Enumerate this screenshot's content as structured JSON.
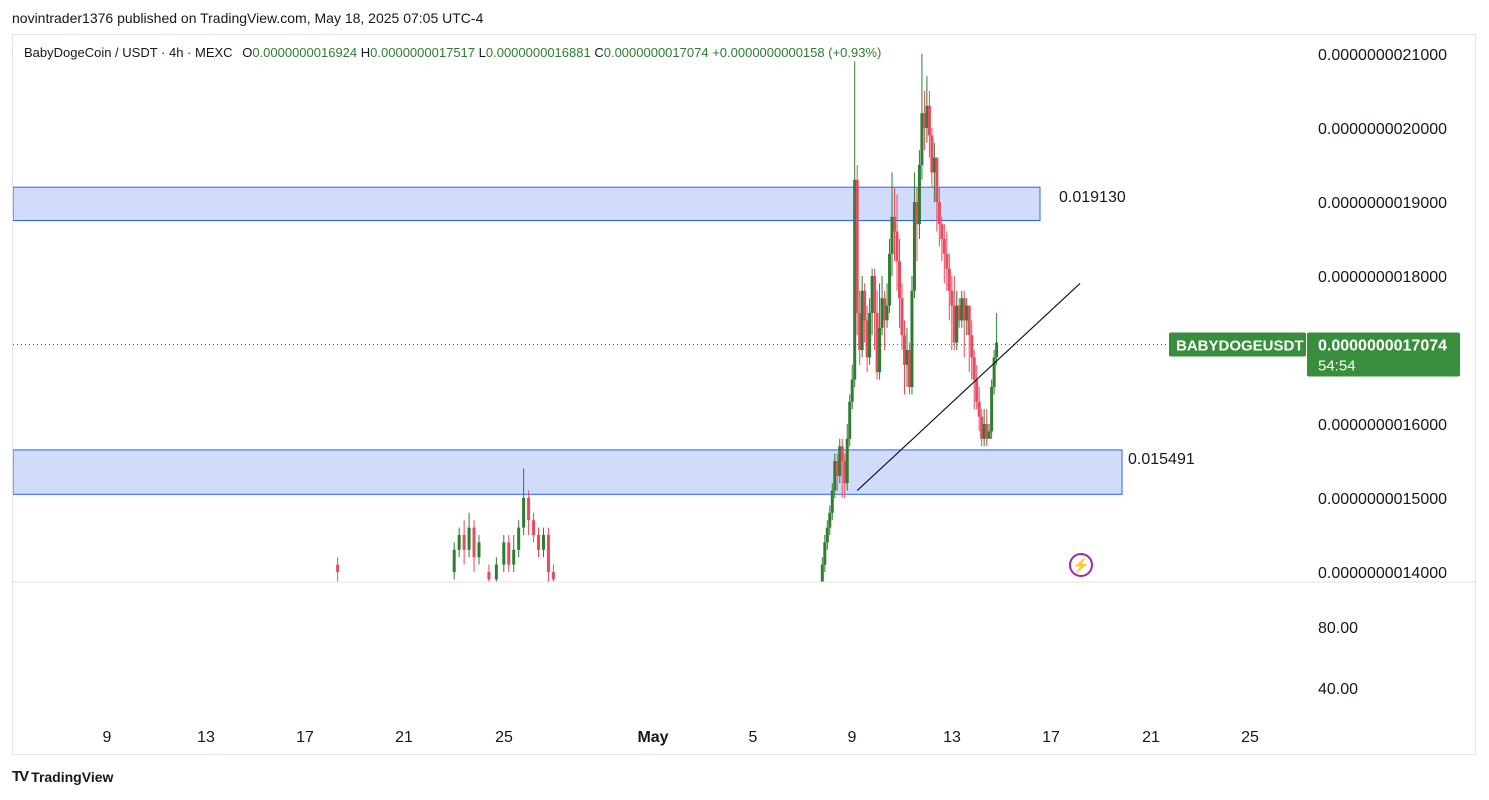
{
  "header": {
    "published_by": "novintrader1376 published on TradingView.com, May 18, 2025 07:05 UTC-4"
  },
  "symbol_bar": {
    "symbol": "BabyDogeCoin / USDT · 4h · MEXC",
    "open_label": "O",
    "open": "0.0000000016924",
    "high_label": "H",
    "high": "0.0000000017517",
    "low_label": "L",
    "low": "0.0000000016881",
    "close_label": "C",
    "close": "0.0000000017074",
    "change": "+0.0000000000158",
    "change_pct": "(+0.93%)"
  },
  "price_scale": {
    "ticks": [
      "0.0000000021000",
      "0.0000000020000",
      "0.0000000019000",
      "0.0000000018000",
      "0.0000000016000",
      "0.0000000015000",
      "0.0000000014000"
    ]
  },
  "oscillator_scale": {
    "ticks": [
      "80.00",
      "40.00"
    ]
  },
  "time_axis": {
    "ticks": [
      "9",
      "13",
      "17",
      "21",
      "25",
      "May",
      "5",
      "9",
      "13",
      "17",
      "21",
      "25"
    ]
  },
  "zones": [
    {
      "name": "resistance-zone",
      "label": "0.019130",
      "top": 1.92e-09,
      "bottom": 1.875e-09
    },
    {
      "name": "support-zone",
      "label": "0.015491",
      "top": 1.565e-09,
      "bottom": 1.505e-09
    }
  ],
  "current_price_tag": {
    "symbol": "BABYDOGEUSDT",
    "price": "0.0000000017074",
    "countdown": "54:54",
    "value": 1.7074e-09
  },
  "colors": {
    "up": "#2e7d32",
    "down": "#e84a5f",
    "zone_fill": "#d1dcfb",
    "zone_border": "#2962ff",
    "tag_bg": "#388e3c"
  },
  "footer": {
    "brand": "TradingView",
    "logo_icon": "tradingview-logo-icon"
  },
  "chart_data": {
    "type": "candlestick",
    "ylim": [
      1.4e-09,
      2.1e-09
    ],
    "trendline": [
      [
        9.2,
        1.51e-09
      ],
      [
        18.15,
        1.79e-09
      ]
    ],
    "candles_may": [
      [
        7.8,
        1.38,
        1.41,
        1.37,
        1.42
      ],
      [
        7.9,
        1.41,
        1.44,
        1.4,
        1.45
      ],
      [
        8.0,
        1.44,
        1.46,
        1.43,
        1.47
      ],
      [
        8.1,
        1.46,
        1.48,
        1.45,
        1.49
      ],
      [
        8.2,
        1.48,
        1.51,
        1.47,
        1.52
      ],
      [
        8.3,
        1.51,
        1.55,
        1.5,
        1.56
      ],
      [
        8.4,
        1.55,
        1.53,
        1.51,
        1.56
      ],
      [
        8.5,
        1.53,
        1.57,
        1.52,
        1.58
      ],
      [
        8.6,
        1.57,
        1.55,
        1.5,
        1.58
      ],
      [
        8.7,
        1.55,
        1.52,
        1.5,
        1.56
      ],
      [
        8.8,
        1.52,
        1.58,
        1.51,
        1.6
      ],
      [
        8.9,
        1.58,
        1.63,
        1.57,
        1.64
      ],
      [
        9.0,
        1.63,
        1.66,
        1.62,
        1.68
      ],
      [
        9.1,
        1.66,
        1.93,
        1.65,
        2.09
      ],
      [
        9.2,
        1.93,
        1.75,
        1.72,
        1.95
      ],
      [
        9.3,
        1.75,
        1.7,
        1.68,
        1.78
      ],
      [
        9.4,
        1.7,
        1.78,
        1.69,
        1.8
      ],
      [
        9.5,
        1.78,
        1.74,
        1.71,
        1.79
      ],
      [
        9.6,
        1.74,
        1.69,
        1.67,
        1.76
      ],
      [
        9.7,
        1.69,
        1.75,
        1.68,
        1.77
      ],
      [
        9.8,
        1.75,
        1.8,
        1.72,
        1.81
      ],
      [
        9.9,
        1.8,
        1.75,
        1.7,
        1.81
      ],
      [
        10.0,
        1.75,
        1.67,
        1.66,
        1.78
      ],
      [
        10.1,
        1.67,
        1.73,
        1.66,
        1.79
      ],
      [
        10.2,
        1.73,
        1.77,
        1.72,
        1.8
      ],
      [
        10.3,
        1.77,
        1.74,
        1.7,
        1.78
      ],
      [
        10.4,
        1.74,
        1.76,
        1.73,
        1.79
      ],
      [
        10.5,
        1.76,
        1.83,
        1.75,
        1.85
      ],
      [
        10.6,
        1.83,
        1.88,
        1.8,
        1.94
      ],
      [
        10.7,
        1.88,
        1.86,
        1.82,
        1.92
      ],
      [
        10.8,
        1.86,
        1.82,
        1.78,
        1.91
      ],
      [
        10.9,
        1.82,
        1.77,
        1.73,
        1.85
      ],
      [
        11.0,
        1.77,
        1.72,
        1.7,
        1.79
      ],
      [
        11.1,
        1.72,
        1.68,
        1.64,
        1.74
      ],
      [
        11.2,
        1.68,
        1.7,
        1.65,
        1.73
      ],
      [
        11.3,
        1.7,
        1.65,
        1.64,
        1.71
      ],
      [
        11.4,
        1.65,
        1.78,
        1.64,
        1.8
      ],
      [
        11.5,
        1.78,
        1.9,
        1.77,
        1.94
      ],
      [
        11.6,
        1.9,
        1.87,
        1.82,
        1.92
      ],
      [
        11.7,
        1.87,
        1.95,
        1.85,
        1.97
      ],
      [
        11.8,
        1.95,
        2.02,
        1.93,
        2.1
      ],
      [
        11.9,
        2.02,
        2.0,
        1.97,
        2.05
      ],
      [
        12.0,
        2.0,
        2.03,
        1.98,
        2.07
      ],
      [
        12.1,
        2.03,
        1.99,
        1.96,
        2.05
      ],
      [
        12.2,
        1.99,
        1.94,
        1.92,
        2.0
      ],
      [
        12.3,
        1.94,
        1.96,
        1.9,
        1.98
      ],
      [
        12.4,
        1.96,
        1.9,
        1.86,
        1.96
      ],
      [
        12.5,
        1.9,
        1.87,
        1.84,
        1.92
      ],
      [
        12.6,
        1.87,
        1.85,
        1.82,
        1.88
      ],
      [
        12.7,
        1.85,
        1.83,
        1.79,
        1.87
      ],
      [
        12.8,
        1.83,
        1.81,
        1.78,
        1.86
      ],
      [
        12.9,
        1.81,
        1.78,
        1.74,
        1.83
      ],
      [
        13.0,
        1.78,
        1.76,
        1.7,
        1.8
      ],
      [
        13.1,
        1.76,
        1.71,
        1.7,
        1.8
      ],
      [
        13.2,
        1.71,
        1.76,
        1.7,
        1.78
      ],
      [
        13.3,
        1.76,
        1.74,
        1.73,
        1.77
      ],
      [
        13.4,
        1.74,
        1.77,
        1.73,
        1.78
      ],
      [
        13.5,
        1.77,
        1.74,
        1.69,
        1.78
      ],
      [
        13.6,
        1.74,
        1.76,
        1.72,
        1.77
      ],
      [
        13.7,
        1.76,
        1.72,
        1.67,
        1.76
      ],
      [
        13.8,
        1.72,
        1.69,
        1.66,
        1.74
      ],
      [
        13.9,
        1.69,
        1.66,
        1.62,
        1.7
      ],
      [
        14.0,
        1.66,
        1.63,
        1.62,
        1.68
      ],
      [
        14.1,
        1.63,
        1.61,
        1.59,
        1.65
      ],
      [
        14.2,
        1.61,
        1.58,
        1.57,
        1.62
      ],
      [
        14.3,
        1.58,
        1.6,
        1.57,
        1.62
      ],
      [
        14.4,
        1.6,
        1.58,
        1.57,
        1.62
      ],
      [
        14.5,
        1.58,
        1.59,
        1.58,
        1.6
      ],
      [
        14.6,
        1.59,
        1.65,
        1.58,
        1.66
      ],
      [
        14.7,
        1.65,
        1.69,
        1.64,
        1.7
      ],
      [
        14.8,
        1.69,
        1.71,
        1.68,
        1.75
      ]
    ],
    "candles_april": [
      [
        18.3,
        1.41,
        1.4,
        1.38,
        1.42
      ],
      [
        23.0,
        1.4,
        1.43,
        1.39,
        1.44
      ],
      [
        23.2,
        1.43,
        1.45,
        1.42,
        1.46
      ],
      [
        23.4,
        1.45,
        1.43,
        1.41,
        1.47
      ],
      [
        23.6,
        1.43,
        1.46,
        1.42,
        1.48
      ],
      [
        23.8,
        1.46,
        1.42,
        1.4,
        1.47
      ],
      [
        24.0,
        1.42,
        1.44,
        1.41,
        1.45
      ],
      [
        24.4,
        1.4,
        1.39,
        1.38,
        1.41
      ],
      [
        24.7,
        1.39,
        1.41,
        1.38,
        1.42
      ],
      [
        25.0,
        1.41,
        1.44,
        1.4,
        1.45
      ],
      [
        25.2,
        1.44,
        1.41,
        1.4,
        1.45
      ],
      [
        25.4,
        1.41,
        1.43,
        1.4,
        1.45
      ],
      [
        25.6,
        1.43,
        1.46,
        1.42,
        1.47
      ],
      [
        25.8,
        1.46,
        1.5,
        1.45,
        1.54
      ],
      [
        26.0,
        1.5,
        1.47,
        1.45,
        1.51
      ],
      [
        26.2,
        1.47,
        1.45,
        1.44,
        1.48
      ],
      [
        26.4,
        1.45,
        1.43,
        1.42,
        1.46
      ],
      [
        26.6,
        1.43,
        1.45,
        1.42,
        1.46
      ],
      [
        26.8,
        1.45,
        1.4,
        1.38,
        1.46
      ],
      [
        27.0,
        1.4,
        1.39,
        1.38,
        1.41
      ]
    ]
  }
}
